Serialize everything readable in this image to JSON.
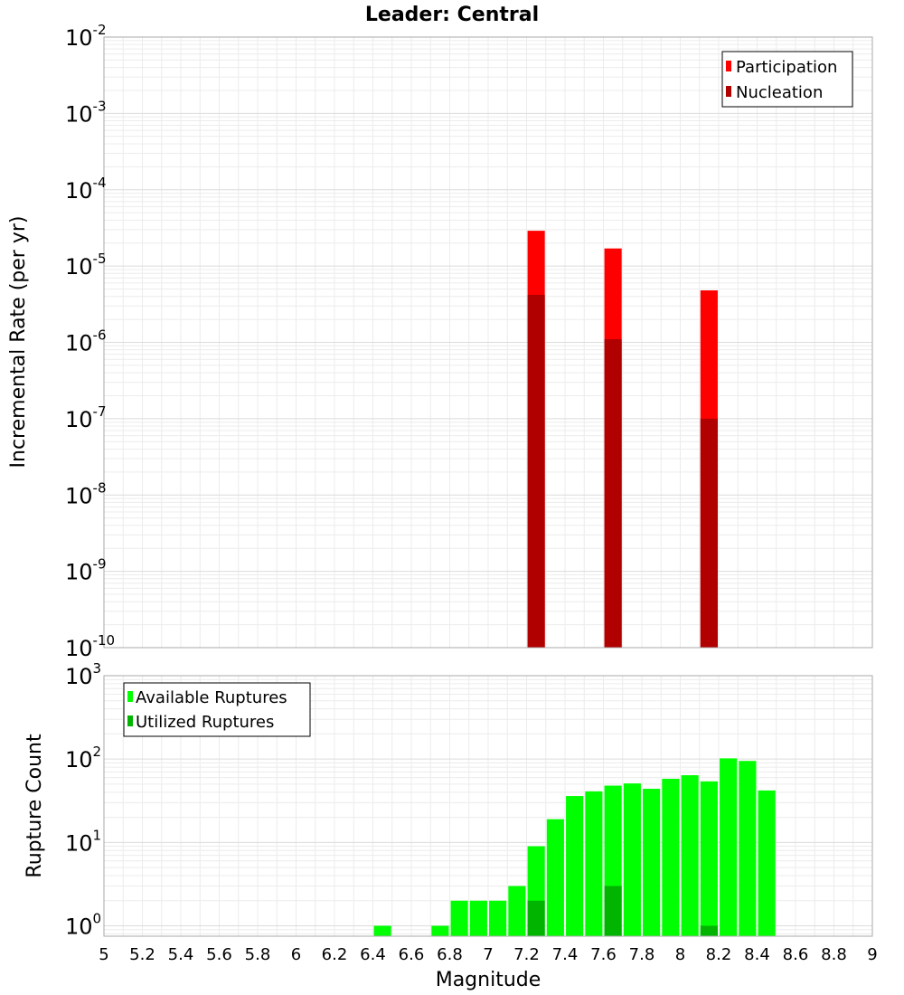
{
  "chart_data": [
    {
      "type": "bar",
      "title": "Leader: Central",
      "xlabel": "",
      "ylabel": "Incremental Rate (per yr)",
      "yscale": "log",
      "ylim": [
        1e-10,
        0.01
      ],
      "xlim": [
        5,
        9
      ],
      "ytick_labels": [
        {
          "value": 0.01,
          "base": "10",
          "exp": "-2"
        },
        {
          "value": 0.001,
          "base": "10",
          "exp": "-3"
        },
        {
          "value": 0.0001,
          "base": "10",
          "exp": "-4"
        },
        {
          "value": 1e-05,
          "base": "10",
          "exp": "-5"
        },
        {
          "value": 1e-06,
          "base": "10",
          "exp": "-6"
        },
        {
          "value": 1e-07,
          "base": "10",
          "exp": "-7"
        },
        {
          "value": 1e-08,
          "base": "10",
          "exp": "-8"
        },
        {
          "value": 1e-09,
          "base": "10",
          "exp": "-9"
        },
        {
          "value": 1e-10,
          "base": "10",
          "exp": "-10"
        }
      ],
      "grid": true,
      "legend_position": "top-right",
      "bar_width": 0.09,
      "series": [
        {
          "name": "Participation",
          "color": "#ff0000",
          "points": [
            {
              "x": 7.25,
              "y": 2.9e-05
            },
            {
              "x": 7.65,
              "y": 1.7e-05
            },
            {
              "x": 8.15,
              "y": 4.8e-06
            }
          ]
        },
        {
          "name": "Nucleation",
          "color": "#b00000",
          "points": [
            {
              "x": 7.25,
              "y": 4.2e-06
            },
            {
              "x": 7.65,
              "y": 1.1e-06
            },
            {
              "x": 8.15,
              "y": 1e-07
            }
          ]
        }
      ]
    },
    {
      "type": "bar",
      "title": "",
      "xlabel": "Magnitude",
      "ylabel": "Rupture Count",
      "yscale": "log",
      "ylim": [
        0.75,
        1000
      ],
      "xlim": [
        5,
        9
      ],
      "ytick_labels": [
        {
          "value": 1000,
          "base": "10",
          "exp": "3"
        },
        {
          "value": 100,
          "base": "10",
          "exp": "2"
        },
        {
          "value": 10,
          "base": "10",
          "exp": "1"
        },
        {
          "value": 1,
          "base": "10",
          "exp": "0"
        }
      ],
      "xticks": [
        "5",
        "5.2",
        "5.4",
        "5.6",
        "5.8",
        "6",
        "6.2",
        "6.4",
        "6.6",
        "6.8",
        "7",
        "7.2",
        "7.4",
        "7.6",
        "7.8",
        "8",
        "8.2",
        "8.4",
        "8.6",
        "8.8",
        "9"
      ],
      "grid": true,
      "legend_position": "top-left",
      "bar_width": 0.09,
      "series": [
        {
          "name": "Available Ruptures",
          "color": "#00ff00",
          "points": [
            {
              "x": 6.45,
              "y": 1
            },
            {
              "x": 6.75,
              "y": 1
            },
            {
              "x": 6.85,
              "y": 2
            },
            {
              "x": 6.95,
              "y": 2
            },
            {
              "x": 7.05,
              "y": 2
            },
            {
              "x": 7.15,
              "y": 3
            },
            {
              "x": 7.25,
              "y": 9
            },
            {
              "x": 7.35,
              "y": 19
            },
            {
              "x": 7.45,
              "y": 36
            },
            {
              "x": 7.55,
              "y": 41
            },
            {
              "x": 7.65,
              "y": 48
            },
            {
              "x": 7.75,
              "y": 51
            },
            {
              "x": 7.85,
              "y": 44
            },
            {
              "x": 7.95,
              "y": 58
            },
            {
              "x": 8.05,
              "y": 64
            },
            {
              "x": 8.15,
              "y": 54
            },
            {
              "x": 8.25,
              "y": 102
            },
            {
              "x": 8.35,
              "y": 95
            },
            {
              "x": 8.45,
              "y": 42
            }
          ]
        },
        {
          "name": "Utilized Ruptures",
          "color": "#00b400",
          "points": [
            {
              "x": 7.25,
              "y": 2
            },
            {
              "x": 7.65,
              "y": 3
            },
            {
              "x": 8.15,
              "y": 1
            }
          ]
        }
      ]
    }
  ]
}
